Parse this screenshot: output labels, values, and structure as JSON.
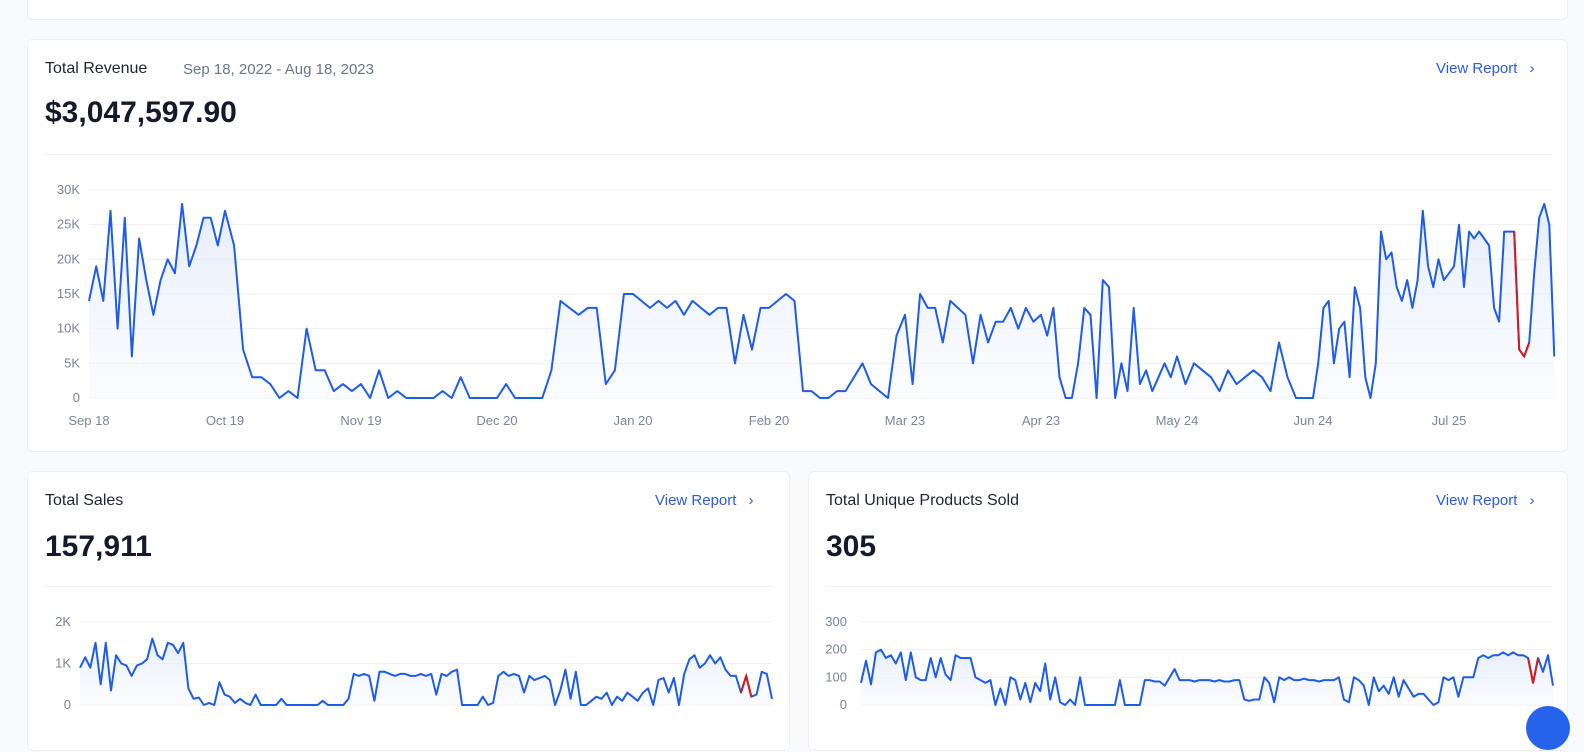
{
  "colors": {
    "line": "#1f5ce8",
    "highlight": "#d61a1a",
    "grid": "#eef0f6",
    "link": "#2b5ce6"
  },
  "revenue": {
    "title": "Total Revenue",
    "date_range": "Sep 18, 2022 - Aug 18, 2023",
    "value": "$3,047,597.90",
    "link": "View Report",
    "chevron": "›"
  },
  "sales": {
    "title": "Total Sales",
    "value": "157,911",
    "link": "View Report",
    "chevron": "›"
  },
  "products": {
    "title": "Total Unique Products Sold",
    "value": "305",
    "link": "View Report",
    "chevron": "›"
  },
  "chart_data": [
    {
      "id": "revenue",
      "type": "line",
      "title": "Total Revenue",
      "ylim": [
        0,
        30000
      ],
      "yticks": [
        0,
        5000,
        10000,
        15000,
        20000,
        25000,
        30000
      ],
      "ytick_labels": [
        "0",
        "5K",
        "10K",
        "15K",
        "20K",
        "25K",
        "30K"
      ],
      "xtick_labels": [
        "Sep 18",
        "Oct 19",
        "Nov 19",
        "Dec 20",
        "Jan 20",
        "Feb 20",
        "Mar 23",
        "Apr 23",
        "May 24",
        "Jun 24",
        "Jul 25"
      ],
      "units": "thousands",
      "segments": [
        [
          14,
          19,
          14,
          27,
          10,
          26,
          6,
          23,
          17,
          12,
          17,
          20,
          18,
          28,
          19,
          22,
          26,
          26,
          22
        ],
        [
          27,
          22,
          7,
          3,
          3,
          2,
          0,
          1,
          0,
          10,
          4,
          4,
          1,
          2,
          1
        ],
        [
          2,
          0,
          4,
          0,
          1,
          0,
          0,
          0,
          0,
          1,
          0,
          3,
          0,
          0,
          0
        ],
        [
          0,
          2,
          0,
          0,
          0,
          0,
          4,
          14,
          13,
          12,
          13,
          13,
          2,
          4,
          15
        ],
        [
          15,
          14,
          13,
          14,
          13,
          14,
          12,
          14,
          13,
          12,
          13,
          13,
          5,
          12,
          7,
          13
        ],
        [
          13,
          14,
          15,
          14,
          1,
          1,
          0,
          0,
          1,
          1,
          3,
          5,
          2,
          1,
          0,
          9
        ],
        [
          12,
          2,
          15,
          13,
          13,
          8,
          14,
          13,
          12,
          5,
          12,
          8,
          11,
          11,
          13,
          10,
          13,
          11
        ],
        [
          12,
          9,
          13,
          3,
          0,
          0,
          5,
          13,
          12,
          0,
          17,
          16,
          0,
          5,
          1,
          13,
          2,
          4,
          1,
          3,
          5,
          3
        ],
        [
          6,
          2,
          5,
          4,
          3,
          1,
          4,
          2,
          3,
          4,
          3,
          1,
          8,
          3,
          0,
          0
        ],
        [
          0,
          5,
          13,
          14,
          5,
          10,
          11,
          3,
          16,
          13,
          3,
          0,
          5,
          24,
          20,
          21,
          16,
          14,
          17,
          13,
          17,
          27,
          19,
          16,
          20,
          17
        ],
        [
          18,
          19,
          25,
          16,
          24,
          23,
          24,
          23,
          22,
          13,
          11,
          24,
          24,
          24,
          7,
          6,
          8,
          18,
          26,
          28,
          25,
          6
        ]
      ],
      "highlight": {
        "segment": 10,
        "from": 13,
        "to": 16
      },
      "last_segment_days": 24,
      "segment_days": 31
    },
    {
      "id": "sales",
      "type": "line",
      "title": "Total Sales",
      "ylim": [
        0,
        2000
      ],
      "yticks": [
        0,
        1000,
        2000
      ],
      "ytick_labels": [
        "0",
        "1K",
        "2K"
      ],
      "values": [
        900,
        1150,
        900,
        1500,
        500,
        1500,
        350,
        1200,
        1000,
        950,
        700,
        950,
        1000,
        1100,
        1600,
        1200,
        1100,
        1500,
        1450,
        1250,
        1500,
        400,
        150,
        180,
        0,
        50,
        0,
        550,
        250,
        200,
        50,
        150,
        50,
        0,
        250,
        0,
        0,
        0,
        0,
        150,
        0,
        0,
        0,
        0,
        0,
        0,
        0,
        100,
        0,
        0,
        0,
        0,
        150,
        750,
        700,
        750,
        700,
        100,
        800,
        800,
        750,
        700,
        750,
        750,
        700,
        700,
        750,
        700,
        750,
        250,
        750,
        700,
        800,
        850,
        0,
        0,
        0,
        0,
        200,
        0,
        50,
        700,
        800,
        700,
        750,
        700,
        300,
        700,
        600,
        650,
        700,
        600,
        0,
        350,
        850,
        150,
        800,
        0,
        0,
        100,
        200,
        150,
        300,
        0,
        200,
        100,
        300,
        200,
        100,
        300,
        400,
        0,
        600,
        650,
        300,
        650,
        0,
        750,
        1100,
        1200,
        900,
        1000,
        1200,
        1000,
        1150,
        850,
        700,
        700,
        300,
        700,
        200,
        250,
        800,
        750,
        150
      ],
      "highlight": {
        "from": 128,
        "to": 130
      }
    },
    {
      "id": "products",
      "type": "line",
      "title": "Total Unique Products Sold",
      "ylim": [
        0,
        300
      ],
      "yticks": [
        0,
        100,
        200,
        300
      ],
      "ytick_labels": [
        "0",
        "100",
        "200",
        "300"
      ],
      "values": [
        80,
        160,
        75,
        190,
        200,
        170,
        180,
        150,
        190,
        90,
        190,
        100,
        90,
        90,
        170,
        100,
        170,
        110,
        90,
        180,
        170,
        170,
        170,
        100,
        90,
        80,
        90,
        0,
        60,
        0,
        100,
        90,
        20,
        80,
        10,
        80,
        50,
        150,
        20,
        100,
        10,
        0,
        20,
        0,
        100,
        0,
        0,
        0,
        0,
        0,
        0,
        0,
        90,
        0,
        0,
        0,
        0,
        90,
        90,
        85,
        85,
        70,
        100,
        130,
        90,
        90,
        90,
        85,
        90,
        90,
        90,
        85,
        90,
        85,
        85,
        90,
        90,
        20,
        15,
        20,
        20,
        100,
        80,
        10,
        100,
        90,
        100,
        90,
        90,
        95,
        90,
        90,
        85,
        90,
        90,
        90,
        100,
        20,
        10,
        100,
        90,
        70,
        0,
        100,
        50,
        70,
        40,
        100,
        30,
        90,
        60,
        30,
        40,
        40,
        20,
        0,
        10,
        100,
        90,
        100,
        30,
        100,
        100,
        100,
        170,
        180,
        170,
        180,
        180,
        190,
        180,
        190,
        180,
        180,
        170,
        80,
        170,
        120,
        180,
        70
      ],
      "highlight": {
        "from": 134,
        "to": 136
      }
    }
  ]
}
